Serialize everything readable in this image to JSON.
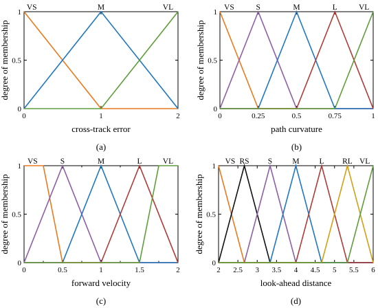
{
  "chart_data": [
    {
      "type": "line",
      "panel_label": "(a)",
      "xlabel": "cross-track error",
      "ylabel": "degree of membership",
      "xlim": [
        0,
        2
      ],
      "ylim": [
        0,
        1
      ],
      "xticks": [
        0,
        1,
        2
      ],
      "xtick_labels": [
        "0",
        "1",
        "2"
      ],
      "yticks": [
        0,
        0.5,
        1
      ],
      "ytick_labels": [
        "0",
        "0.5",
        "1"
      ],
      "grid": false,
      "series": [
        {
          "name": "VS",
          "color": "#ea7a1d",
          "x": [
            0,
            1,
            2
          ],
          "y": [
            1,
            0,
            0
          ],
          "label_x": 0.1
        },
        {
          "name": "M",
          "color": "#1f77c2",
          "x": [
            0,
            1,
            2
          ],
          "y": [
            0,
            1,
            0
          ],
          "label_x": 1.0
        },
        {
          "name": "VL",
          "color": "#5e9e3a",
          "x": [
            0,
            1,
            2
          ],
          "y": [
            0,
            0,
            1
          ],
          "label_x": 1.87
        }
      ]
    },
    {
      "type": "line",
      "panel_label": "(b)",
      "xlabel": "path curvature",
      "ylabel": "degree of membership",
      "xlim": [
        0,
        1
      ],
      "ylim": [
        0,
        1
      ],
      "xticks": [
        0,
        0.25,
        0.5,
        0.75,
        1
      ],
      "xtick_labels": [
        "0",
        "0.25",
        "0.5",
        "0.75",
        "1"
      ],
      "yticks": [
        0,
        0.5,
        1
      ],
      "ytick_labels": [
        "0",
        "0.5",
        "1"
      ],
      "grid": false,
      "series": [
        {
          "name": "VS",
          "color": "#ea7a1d",
          "x": [
            0,
            0.25,
            1
          ],
          "y": [
            1,
            0,
            0
          ],
          "label_x": 0.06
        },
        {
          "name": "S",
          "color": "#8c5fa8",
          "x": [
            0,
            0.25,
            0.5,
            1
          ],
          "y": [
            0,
            1,
            0,
            0
          ],
          "label_x": 0.25
        },
        {
          "name": "M",
          "color": "#1f77c2",
          "x": [
            0,
            0.25,
            0.5,
            0.75,
            1
          ],
          "y": [
            0,
            0,
            1,
            0,
            0
          ],
          "label_x": 0.5
        },
        {
          "name": "L",
          "color": "#b03a36",
          "x": [
            0,
            0.5,
            0.75,
            1
          ],
          "y": [
            0,
            0,
            1,
            0
          ],
          "label_x": 0.75
        },
        {
          "name": "VL",
          "color": "#5e9e3a",
          "x": [
            0,
            0.75,
            1
          ],
          "y": [
            0,
            0,
            1
          ],
          "label_x": 0.94
        }
      ]
    },
    {
      "type": "line",
      "panel_label": "(c)",
      "xlabel": "forward velocity",
      "ylabel": "degree of membership",
      "xlim": [
        0,
        2
      ],
      "ylim": [
        0,
        1
      ],
      "xticks": [
        0,
        0.5,
        1,
        1.5,
        2
      ],
      "xtick_labels": [
        "0",
        "0.5",
        "1",
        "1.5",
        "2"
      ],
      "minor_xticks": [
        0.25,
        0.75,
        1.25,
        1.75
      ],
      "yticks": [
        0,
        0.5,
        1
      ],
      "ytick_labels": [
        "0",
        "0.5",
        "1"
      ],
      "grid": false,
      "series": [
        {
          "name": "VS",
          "color": "#ea7a1d",
          "x": [
            0,
            0.25,
            0.5,
            2
          ],
          "y": [
            1,
            1,
            0,
            0
          ],
          "label_x": 0.11
        },
        {
          "name": "S",
          "color": "#8c5fa8",
          "x": [
            0,
            0.5,
            1,
            2
          ],
          "y": [
            0,
            1,
            0,
            0
          ],
          "label_x": 0.5
        },
        {
          "name": "M",
          "color": "#1f77c2",
          "x": [
            0,
            0.5,
            1,
            1.5,
            2
          ],
          "y": [
            0,
            0,
            1,
            0,
            0
          ],
          "label_x": 1.0
        },
        {
          "name": "L",
          "color": "#b03a36",
          "x": [
            0,
            1,
            1.5,
            2
          ],
          "y": [
            0,
            0,
            1,
            0
          ],
          "label_x": 1.5
        },
        {
          "name": "VL",
          "color": "#5e9e3a",
          "x": [
            0,
            1.5,
            1.75,
            2
          ],
          "y": [
            0,
            0,
            1,
            1
          ],
          "label_x": 1.87
        }
      ]
    },
    {
      "type": "line",
      "panel_label": "(d)",
      "xlabel": "look-ahead distance",
      "ylabel": "degree of membership",
      "xlim": [
        2,
        6
      ],
      "ylim": [
        0,
        1
      ],
      "xticks": [
        2,
        2.5,
        3,
        3.5,
        4,
        4.5,
        5,
        5.5,
        6
      ],
      "xtick_labels": [
        "2",
        "2.5",
        "3",
        "3.5",
        "4",
        "4.5",
        "5",
        "5.5",
        "6"
      ],
      "yticks": [
        0,
        0.5,
        1
      ],
      "ytick_labels": [
        "0",
        "0.5",
        "1"
      ],
      "grid": false,
      "series": [
        {
          "name": "VS",
          "color": "#ea7a1d",
          "x": [
            2,
            2.667,
            6
          ],
          "y": [
            1,
            0,
            0
          ],
          "label_x": 2.3
        },
        {
          "name": "RS",
          "color": "#111111",
          "x": [
            2,
            2.667,
            3.333,
            6
          ],
          "y": [
            0,
            1,
            0,
            0
          ],
          "label_x": 2.667
        },
        {
          "name": "S",
          "color": "#8c5fa8",
          "x": [
            2,
            2.667,
            3.333,
            4,
            6
          ],
          "y": [
            0,
            0,
            1,
            0,
            0
          ],
          "label_x": 3.333
        },
        {
          "name": "M",
          "color": "#1f77c2",
          "x": [
            2,
            3.333,
            4,
            4.667,
            6
          ],
          "y": [
            0,
            0,
            1,
            0,
            0
          ],
          "label_x": 4.0
        },
        {
          "name": "L",
          "color": "#b03a36",
          "x": [
            2,
            4,
            4.667,
            5.333,
            6
          ],
          "y": [
            0,
            0,
            1,
            0,
            0
          ],
          "label_x": 4.667
        },
        {
          "name": "RL",
          "color": "#d69e12",
          "x": [
            2,
            4.667,
            5.333,
            6
          ],
          "y": [
            0,
            0,
            1,
            0
          ],
          "label_x": 5.333
        },
        {
          "name": "VL",
          "color": "#5e9e3a",
          "x": [
            2,
            5.333,
            6
          ],
          "y": [
            0,
            0,
            1
          ],
          "label_x": 5.78
        }
      ]
    }
  ]
}
